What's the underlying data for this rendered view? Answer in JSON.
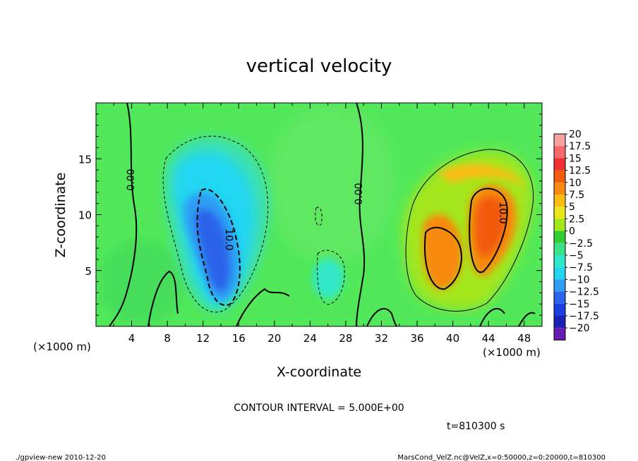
{
  "chart_data": {
    "type": "heatmap",
    "title": "vertical velocity",
    "xlabel": "X-coordinate",
    "ylabel": "Z-coordinate",
    "x_unit": "(×1000 m)",
    "xlim": [
      0,
      50
    ],
    "ylim": [
      0,
      20
    ],
    "xticks": [
      4,
      8,
      12,
      16,
      20,
      24,
      28,
      32,
      36,
      40,
      44,
      48
    ],
    "yticks": [
      5,
      10,
      15
    ],
    "colorbar": {
      "levels": [
        20,
        17.5,
        15,
        12.5,
        10,
        7.5,
        5,
        2.5,
        0,
        -2.5,
        -5,
        -7.5,
        -10,
        -12.5,
        -15,
        -17.5,
        -20
      ],
      "colors": [
        "#f7a0a0",
        "#f46a6a",
        "#f03030",
        "#f25a0c",
        "#f78a10",
        "#fbbc14",
        "#e8e61a",
        "#a4e61e",
        "#32cd32",
        "#3ce08a",
        "#30e8c8",
        "#22d6f2",
        "#2f9ef4",
        "#2b64ea",
        "#1d3ede",
        "#1c22b8",
        "#6a1ab4"
      ]
    },
    "contour_interval_text": "CONTOUR INTERVAL = 5.000E+00",
    "contour_labels": [
      "0.00",
      "0.00",
      "10.0",
      "10.0"
    ],
    "features": [
      {
        "name": "downdraft",
        "x_center": 13.5,
        "z_center": 8.5,
        "peak": -12
      },
      {
        "name": "updraft-left",
        "x_center": 38.5,
        "z_center": 6,
        "peak": 10
      },
      {
        "name": "updraft-right",
        "x_center": 44,
        "z_center": 9,
        "peak": 13
      }
    ]
  },
  "time_label": "t=810300 s",
  "footer_left": "./gpview-new   2010-12-20",
  "footer_right": "MarsCond_VelZ.nc@VelZ,x=0:50000,z=0:20000,t=810300"
}
